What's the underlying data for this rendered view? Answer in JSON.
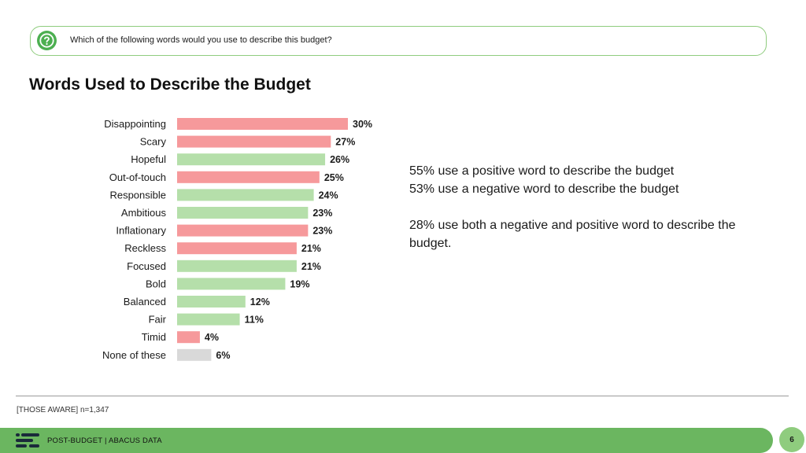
{
  "question": {
    "icon": "question-mark-icon",
    "text": "Which of the following words would you use to describe this budget?"
  },
  "colors": {
    "negative": "#f6999b",
    "positive": "#b5dfaa",
    "neutral": "#d9d9d9",
    "accent_green": "#6bb660"
  },
  "chart_data": {
    "type": "bar",
    "orientation": "horizontal",
    "title": "Words Used to Describe the Budget",
    "xlabel": "",
    "ylabel": "",
    "unit": "%",
    "xlim": [
      0,
      30
    ],
    "categories": [
      "Disappointing",
      "Scary",
      "Hopeful",
      "Out-of-touch",
      "Responsible",
      "Ambitious",
      "Inflationary",
      "Reckless",
      "Focused",
      "Bold",
      "Balanced",
      "Fair",
      "Timid",
      "None of these"
    ],
    "values": [
      30,
      27,
      26,
      25,
      24,
      23,
      23,
      21,
      21,
      19,
      12,
      11,
      4,
      6
    ],
    "labels": [
      "30%",
      "27%",
      "26%",
      "25%",
      "24%",
      "23%",
      "23%",
      "21%",
      "21%",
      "19%",
      "12%",
      "11%",
      "4%",
      "6%"
    ],
    "sentiment": [
      "negative",
      "negative",
      "positive",
      "negative",
      "positive",
      "positive",
      "negative",
      "negative",
      "positive",
      "positive",
      "positive",
      "positive",
      "negative",
      "neutral"
    ]
  },
  "stats": {
    "line1": "55% use a positive word to describe the budget",
    "line2": "53% use a negative word to describe the budget",
    "line3": "28% use both a negative and positive word to describe the budget."
  },
  "sample_note": "[THOSE AWARE] n=1,347",
  "footer": {
    "logo_icon": "abacus-logo-icon",
    "text": "POST-BUDGET  |  ABACUS DATA",
    "page_number": "6"
  }
}
